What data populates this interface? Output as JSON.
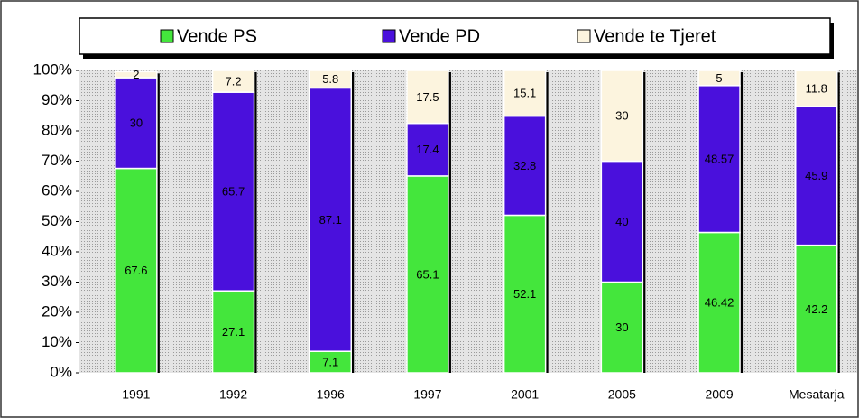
{
  "chart_data": {
    "type": "stacked_bar",
    "categories": [
      "1991",
      "1992",
      "1996",
      "1997",
      "2001",
      "2005",
      "2009",
      "Mesatarja"
    ],
    "series": [
      {
        "name": "Vende PS",
        "color": "#44e63c",
        "values": [
          67.6,
          27.1,
          7.1,
          65.1,
          52.1,
          30,
          46.42,
          42.2
        ]
      },
      {
        "name": "Vende PD",
        "color": "#4a10dc",
        "values": [
          30,
          65.7,
          87.1,
          17.4,
          32.8,
          40,
          48.57,
          45.9
        ]
      },
      {
        "name": "Vende te Tjeret",
        "color": "#fcf4de",
        "values": [
          2,
          7.2,
          5.8,
          17.5,
          15.1,
          30,
          5,
          11.8
        ]
      }
    ],
    "ylim": [
      0,
      100
    ],
    "yticks": [
      {
        "value": 0,
        "label": "0%"
      },
      {
        "value": 10,
        "label": "10%"
      },
      {
        "value": 20,
        "label": "20%"
      },
      {
        "value": 30,
        "label": "30%"
      },
      {
        "value": 40,
        "label": "40%"
      },
      {
        "value": 50,
        "label": "50%"
      },
      {
        "value": 60,
        "label": "60%"
      },
      {
        "value": 70,
        "label": "70%"
      },
      {
        "value": 80,
        "label": "80%"
      },
      {
        "value": 90,
        "label": "90%"
      },
      {
        "value": 100,
        "label": "100%"
      }
    ],
    "legend": "top"
  }
}
